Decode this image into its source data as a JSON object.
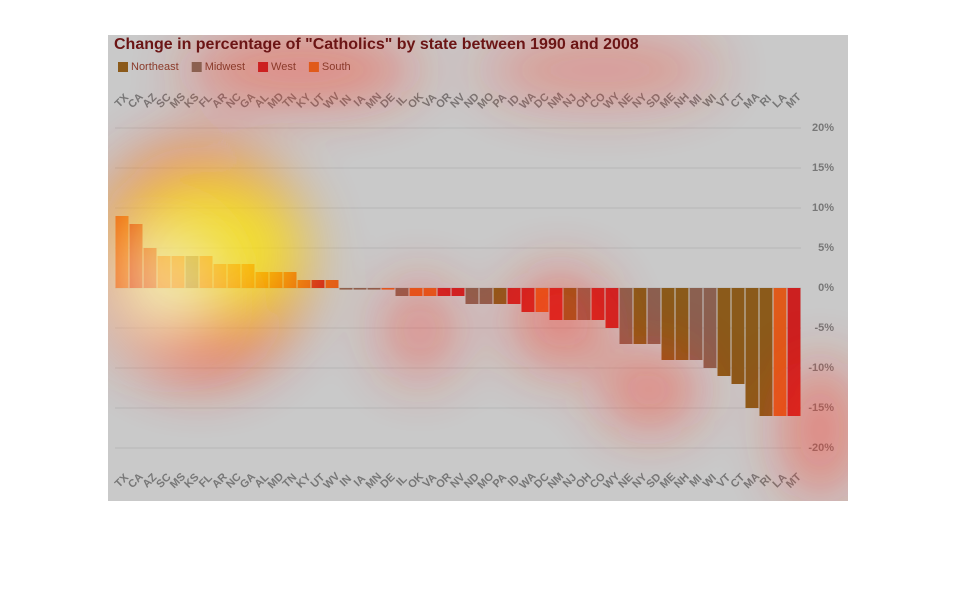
{
  "chart_data": {
    "type": "bar",
    "title": "Change in percentage of \"Catholics\" by state between 1990 and 2008",
    "categories": [
      "TX",
      "CA",
      "AZ",
      "SC",
      "MS",
      "KS",
      "FL",
      "AR",
      "NC",
      "GA",
      "AL",
      "MD",
      "TN",
      "KY",
      "UT",
      "WV",
      "IN",
      "IA",
      "MN",
      "DE",
      "IL",
      "OK",
      "VA",
      "OR",
      "NV",
      "ND",
      "MO",
      "PA",
      "ID",
      "WA",
      "DC",
      "NM",
      "NJ",
      "OH",
      "CO",
      "WY",
      "NE",
      "NY",
      "SD",
      "ME",
      "NH",
      "MI",
      "WI",
      "VT",
      "CT",
      "MA",
      "RI",
      "LA",
      "MT"
    ],
    "series": [
      {
        "name": "Northeast",
        "color": "#8b5a1a",
        "values": [
          null,
          null,
          null,
          null,
          null,
          null,
          null,
          null,
          null,
          null,
          null,
          null,
          null,
          null,
          null,
          null,
          null,
          null,
          null,
          null,
          null,
          null,
          null,
          null,
          null,
          null,
          null,
          -2,
          null,
          null,
          null,
          null,
          -4,
          null,
          null,
          null,
          null,
          -7,
          null,
          -9,
          -9,
          null,
          null,
          -11,
          -12,
          -15,
          -16,
          null,
          null
        ]
      },
      {
        "name": "Midwest",
        "color": "#8b6050",
        "values": [
          null,
          null,
          null,
          null,
          null,
          4,
          null,
          null,
          null,
          null,
          null,
          null,
          null,
          null,
          null,
          null,
          -0.2,
          -0.2,
          -0.2,
          null,
          -1,
          null,
          null,
          null,
          null,
          -2,
          -2,
          null,
          null,
          null,
          null,
          null,
          null,
          -4,
          null,
          null,
          -7,
          null,
          -7,
          null,
          null,
          -9,
          -10,
          null,
          null,
          null,
          null,
          null,
          null
        ]
      },
      {
        "name": "West",
        "color": "#cc2020",
        "values": [
          null,
          8,
          5,
          null,
          null,
          null,
          null,
          null,
          null,
          null,
          null,
          null,
          null,
          null,
          1,
          null,
          null,
          null,
          null,
          null,
          null,
          null,
          null,
          -1,
          -1,
          null,
          null,
          null,
          -2,
          -3,
          null,
          -4,
          null,
          null,
          -4,
          -5,
          null,
          null,
          null,
          null,
          null,
          null,
          null,
          null,
          null,
          null,
          null,
          null,
          -16
        ]
      },
      {
        "name": "South",
        "color": "#e05a1a",
        "values": [
          9,
          null,
          null,
          4,
          4,
          null,
          4,
          3,
          3,
          3,
          2,
          2,
          2,
          1,
          null,
          1,
          null,
          null,
          null,
          -0.2,
          null,
          -1,
          -1,
          null,
          null,
          null,
          null,
          null,
          null,
          null,
          -3,
          null,
          null,
          null,
          null,
          null,
          null,
          null,
          null,
          null,
          null,
          null,
          null,
          null,
          null,
          null,
          null,
          -16,
          null
        ]
      }
    ],
    "ylim": [
      -20,
      20
    ],
    "yticks": [
      {
        "value": 20,
        "label": "20%"
      },
      {
        "value": 15,
        "label": "15%"
      },
      {
        "value": 10,
        "label": "10%"
      },
      {
        "value": 5,
        "label": "5%"
      },
      {
        "value": 0,
        "label": "0%"
      },
      {
        "value": -5,
        "label": "-5%"
      },
      {
        "value": -10,
        "label": "-10%"
      },
      {
        "value": -15,
        "label": "-15%"
      },
      {
        "value": -20,
        "label": "-20%"
      }
    ],
    "grid": true
  }
}
